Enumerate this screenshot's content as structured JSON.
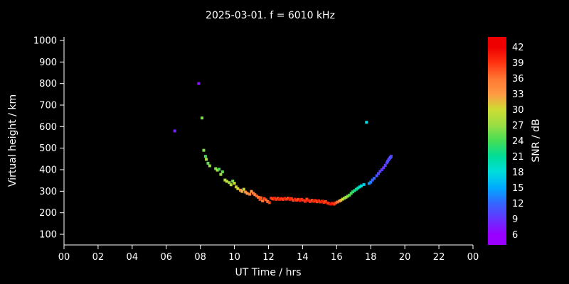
{
  "title": "2025-03-01. f = 6010 kHz",
  "colors": {
    "background": "#000000",
    "text": "#ffffff",
    "axis": "#ffffff"
  },
  "chart_data": {
    "type": "scatter",
    "title": "2025-03-01. f = 6010 kHz",
    "xlabel": "UT Time / hrs",
    "ylabel": "Virtual height / km",
    "colorbar_label": "SNR / dB",
    "xlim": [
      0,
      24
    ],
    "ylim": [
      100,
      1000
    ],
    "x_ticks": [
      0,
      2,
      4,
      6,
      8,
      10,
      12,
      14,
      16,
      18,
      20,
      22,
      24
    ],
    "x_tick_labels": [
      "00",
      "02",
      "04",
      "06",
      "08",
      "10",
      "12",
      "14",
      "16",
      "18",
      "20",
      "22",
      "00"
    ],
    "y_ticks": [
      100,
      200,
      300,
      400,
      500,
      600,
      700,
      800,
      900,
      1000
    ],
    "snr_ticks": [
      6,
      9,
      12,
      15,
      18,
      21,
      24,
      27,
      30,
      33,
      36,
      39,
      42
    ],
    "snr_range": [
      4,
      44
    ],
    "colormap": [
      [
        6,
        "#9900ff"
      ],
      [
        9,
        "#6633ff"
      ],
      [
        12,
        "#3366ff"
      ],
      [
        15,
        "#00aaff"
      ],
      [
        18,
        "#00dddd"
      ],
      [
        21,
        "#00dd99"
      ],
      [
        24,
        "#44dd55"
      ],
      [
        27,
        "#99dd44"
      ],
      [
        30,
        "#ccdd33"
      ],
      [
        33,
        "#ff9944"
      ],
      [
        36,
        "#ff7733"
      ],
      [
        39,
        "#ff3311"
      ],
      [
        42,
        "#ee0000"
      ]
    ],
    "points": [
      [
        6.5,
        580,
        8
      ],
      [
        7.9,
        800,
        7
      ],
      [
        8.1,
        640,
        26
      ],
      [
        17.75,
        620,
        18
      ],
      [
        8.2,
        490,
        26
      ],
      [
        8.3,
        462,
        24
      ],
      [
        8.35,
        448,
        28
      ],
      [
        8.45,
        430,
        25
      ],
      [
        8.55,
        418,
        27
      ],
      [
        8.9,
        405,
        26
      ],
      [
        9.0,
        398,
        28
      ],
      [
        9.1,
        402,
        24
      ],
      [
        9.2,
        378,
        27
      ],
      [
        9.3,
        390,
        25
      ],
      [
        9.45,
        352,
        28
      ],
      [
        9.55,
        346,
        30
      ],
      [
        9.7,
        340,
        27
      ],
      [
        9.8,
        330,
        29
      ],
      [
        9.9,
        347,
        26
      ],
      [
        10.0,
        337,
        30
      ],
      [
        10.1,
        320,
        31
      ],
      [
        10.2,
        312,
        30
      ],
      [
        10.35,
        305,
        33
      ],
      [
        10.45,
        299,
        32
      ],
      [
        10.55,
        309,
        30
      ],
      [
        10.65,
        296,
        34
      ],
      [
        10.75,
        290,
        33
      ],
      [
        10.9,
        286,
        35
      ],
      [
        11.0,
        299,
        33
      ],
      [
        11.1,
        291,
        36
      ],
      [
        11.2,
        284,
        35
      ],
      [
        11.3,
        278,
        37
      ],
      [
        11.4,
        272,
        36
      ],
      [
        11.5,
        262,
        38
      ],
      [
        11.55,
        270,
        37
      ],
      [
        11.65,
        255,
        36
      ],
      [
        11.75,
        266,
        38
      ],
      [
        11.85,
        260,
        37
      ],
      [
        11.95,
        252,
        36
      ],
      [
        12.05,
        247,
        38
      ],
      [
        12.15,
        268,
        39
      ],
      [
        12.25,
        264,
        38
      ],
      [
        12.35,
        268,
        40
      ],
      [
        12.45,
        262,
        39
      ],
      [
        12.55,
        267,
        38
      ],
      [
        12.65,
        262,
        40
      ],
      [
        12.75,
        266,
        39
      ],
      [
        12.85,
        262,
        38
      ],
      [
        12.95,
        267,
        40
      ],
      [
        13.05,
        263,
        39
      ],
      [
        13.15,
        268,
        38
      ],
      [
        13.25,
        262,
        40
      ],
      [
        13.35,
        266,
        39
      ],
      [
        13.45,
        258,
        38
      ],
      [
        13.55,
        263,
        40
      ],
      [
        13.65,
        258,
        39
      ],
      [
        13.75,
        262,
        38
      ],
      [
        13.85,
        257,
        40
      ],
      [
        13.95,
        262,
        39
      ],
      [
        14.05,
        258,
        40
      ],
      [
        14.15,
        253,
        39
      ],
      [
        14.25,
        263,
        38
      ],
      [
        14.35,
        257,
        40
      ],
      [
        14.45,
        252,
        39
      ],
      [
        14.55,
        258,
        38
      ],
      [
        14.65,
        253,
        40
      ],
      [
        14.75,
        257,
        39
      ],
      [
        14.85,
        251,
        38
      ],
      [
        14.95,
        256,
        40
      ],
      [
        15.05,
        250,
        39
      ],
      [
        15.15,
        254,
        40
      ],
      [
        15.25,
        248,
        39
      ],
      [
        15.35,
        252,
        38
      ],
      [
        15.45,
        246,
        40
      ],
      [
        15.55,
        243,
        39
      ],
      [
        15.65,
        240,
        41
      ],
      [
        15.75,
        244,
        40
      ],
      [
        15.85,
        240,
        39
      ],
      [
        15.95,
        246,
        38
      ],
      [
        16.05,
        250,
        36
      ],
      [
        16.15,
        254,
        34
      ],
      [
        16.25,
        258,
        32
      ],
      [
        16.35,
        263,
        30
      ],
      [
        16.45,
        268,
        28
      ],
      [
        16.55,
        272,
        27
      ],
      [
        16.65,
        277,
        26
      ],
      [
        16.75,
        282,
        25
      ],
      [
        16.85,
        290,
        24
      ],
      [
        16.95,
        297,
        23
      ],
      [
        17.05,
        303,
        22
      ],
      [
        17.15,
        309,
        21
      ],
      [
        17.25,
        315,
        20
      ],
      [
        17.35,
        320,
        19
      ],
      [
        17.45,
        325,
        18
      ],
      [
        17.6,
        331,
        17
      ],
      [
        17.9,
        336,
        14
      ],
      [
        18.0,
        342,
        13
      ],
      [
        18.1,
        352,
        12
      ],
      [
        18.2,
        360,
        12
      ],
      [
        18.35,
        372,
        11
      ],
      [
        18.45,
        382,
        10
      ],
      [
        18.55,
        392,
        10
      ],
      [
        18.65,
        400,
        9
      ],
      [
        18.75,
        409,
        9
      ],
      [
        18.85,
        420,
        10
      ],
      [
        18.95,
        432,
        9
      ],
      [
        19.0,
        440,
        11
      ],
      [
        19.05,
        446,
        10
      ],
      [
        19.1,
        452,
        9
      ],
      [
        19.15,
        457,
        12
      ],
      [
        19.2,
        462,
        10
      ]
    ]
  }
}
